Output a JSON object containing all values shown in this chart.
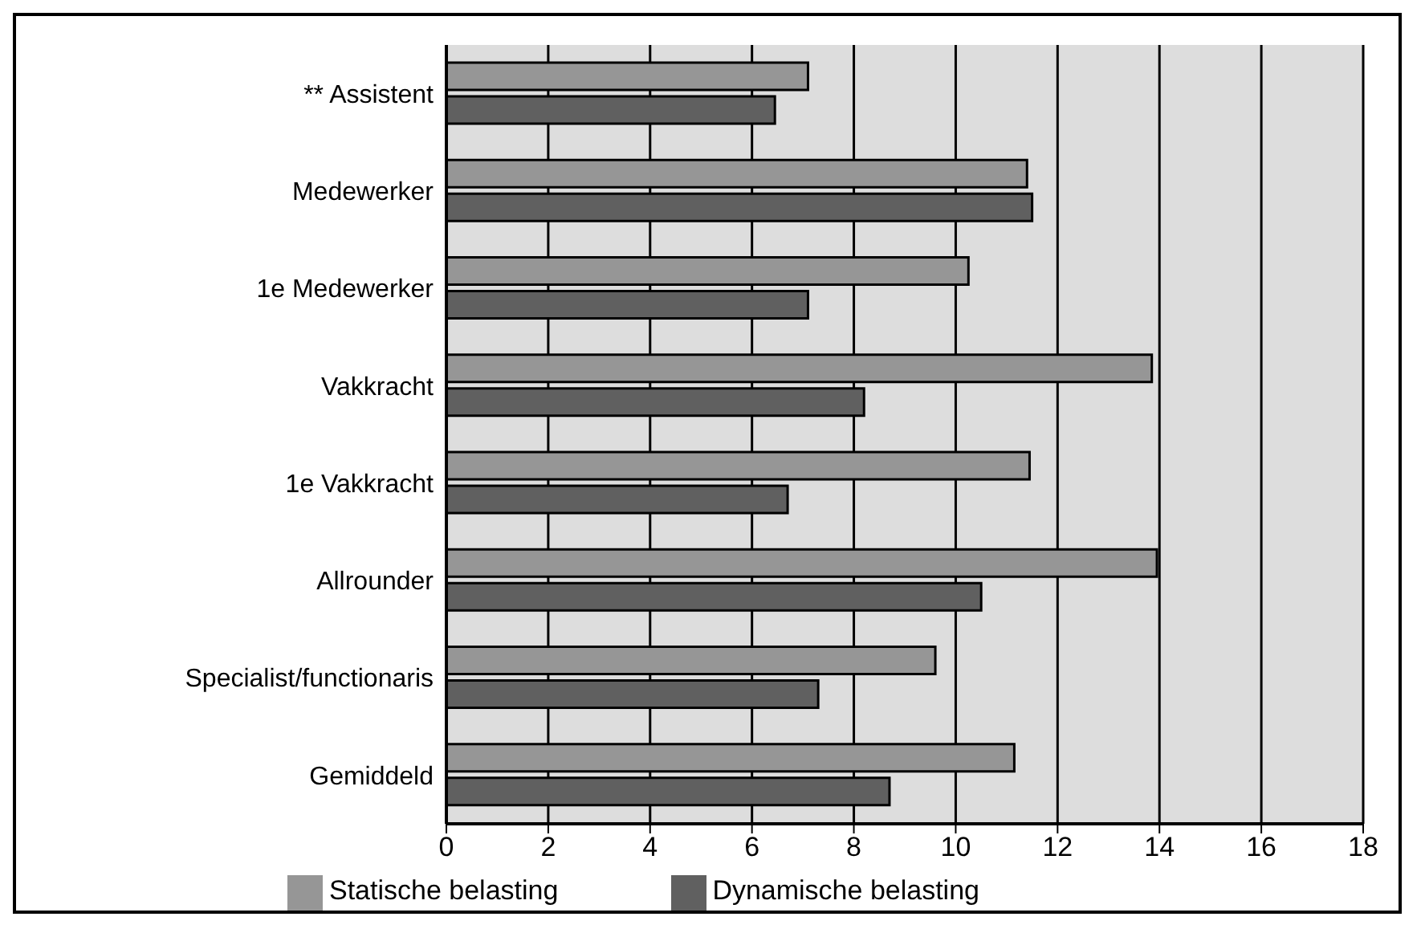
{
  "chart_data": {
    "type": "bar",
    "orientation": "horizontal",
    "categories": [
      "** Assistent",
      "Medewerker",
      "1e Medewerker",
      "Vakkracht",
      "1e Vakkracht",
      "Allrounder",
      "Specialist/functionaris",
      "Gemiddeld"
    ],
    "series": [
      {
        "name": "Statische belasting",
        "color": "#969696",
        "values": [
          7.1,
          11.4,
          10.25,
          13.85,
          11.45,
          13.95,
          9.6,
          11.15
        ]
      },
      {
        "name": "Dynamische belasting",
        "color": "#606060",
        "values": [
          6.45,
          11.5,
          7.1,
          8.2,
          6.7,
          10.5,
          7.3,
          8.7
        ]
      }
    ],
    "xlim": [
      0,
      18
    ],
    "xticks": [
      0,
      2,
      4,
      6,
      8,
      10,
      12,
      14,
      16,
      18
    ],
    "grid": "x",
    "legend": "bottom"
  }
}
